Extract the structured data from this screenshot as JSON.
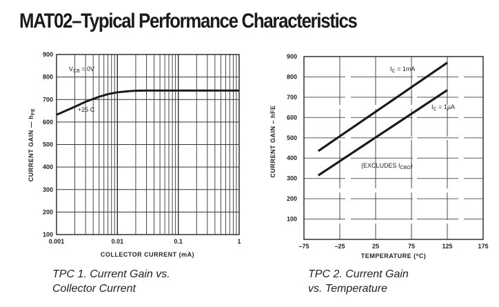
{
  "page": {
    "title": "MAT02–Typical Performance Characteristics"
  },
  "chart_data": [
    {
      "type": "line",
      "title": "TPC 1. Current Gain vs. Collector Current",
      "caption_lines": [
        "TPC 1.  Current Gain vs.",
        "Collector Current"
      ],
      "xlabel": "COLLECTOR CURRENT (mA)",
      "ylabel": "CURRENT GAIN — h",
      "ylabel_sub": "FE",
      "xscale": "log",
      "xlim": [
        0.001,
        1
      ],
      "ylim": [
        100,
        900
      ],
      "xticks": [
        "0.001",
        "0.01",
        "0.1",
        "1"
      ],
      "yticks": [
        "100",
        "200",
        "300",
        "400",
        "500",
        "600",
        "700",
        "800",
        "900"
      ],
      "grid": true,
      "annotations": {
        "vcb_main": "V",
        "vcb_sub": "CB",
        "vcb_rest": " = 0V",
        "temp": "+25 C"
      },
      "series": [
        {
          "name": "+25 C",
          "x": [
            0.001,
            0.002,
            0.003,
            0.005,
            0.007,
            0.01,
            0.015,
            0.02,
            0.03,
            0.05,
            0.1,
            0.3,
            1
          ],
          "y": [
            632,
            668,
            690,
            712,
            724,
            732,
            737,
            739,
            740,
            740,
            740,
            740,
            740
          ]
        }
      ]
    },
    {
      "type": "line",
      "title": "TPC 2. Current Gain vs. Temperature",
      "caption_lines": [
        "TPC 2.  Current Gain",
        "vs. Temperature"
      ],
      "xlabel": "TEMPERATURE (°C)",
      "xlabel_main": "TEMPERATURE (",
      "xlabel_deg": "o",
      "xlabel_end": "C)",
      "ylabel": "CURRENT GAIN – hFE",
      "xlim": [
        -75,
        175
      ],
      "ylim": [
        0,
        900
      ],
      "xticks": [
        "–75",
        "–25",
        "25",
        "75",
        "125",
        "175"
      ],
      "yticks": [
        "100",
        "200",
        "300",
        "400",
        "500",
        "600",
        "700",
        "800",
        "900"
      ],
      "grid": true,
      "annotations": {
        "excludes_main": "(EXCLUDES I",
        "excludes_sub": "CBO",
        "excludes_end": ")"
      },
      "series": [
        {
          "name": "I_C = 1mA",
          "label_main": "I",
          "label_sub": "C",
          "label_rest": " = 1mA",
          "x": [
            -55,
            125
          ],
          "y": [
            435,
            870
          ]
        },
        {
          "name": "I_C = 1µA",
          "label_main": "I",
          "label_sub": "C",
          "label_rest": " = 1µA",
          "x": [
            -55,
            125
          ],
          "y": [
            315,
            735
          ]
        }
      ]
    }
  ]
}
